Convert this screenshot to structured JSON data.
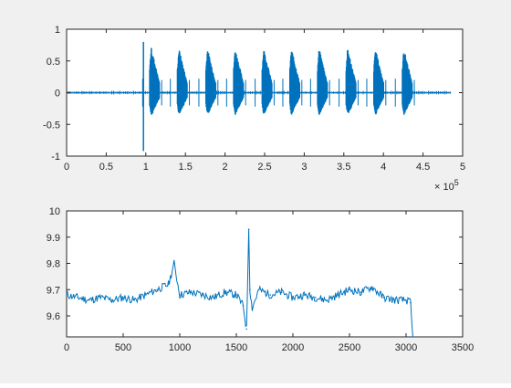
{
  "chart_data": [
    {
      "type": "line",
      "title": "",
      "xlabel": "",
      "ylabel": "",
      "xlim": [
        0,
        500000
      ],
      "ylim": [
        -1,
        1
      ],
      "x_ticks": [
        "0",
        "0.5",
        "1",
        "1.5",
        "2",
        "2.5",
        "3",
        "3.5",
        "4",
        "4.5",
        "5"
      ],
      "y_ticks": [
        "-1",
        "-0.5",
        "0",
        "0.5",
        "1"
      ],
      "x_exponent": {
        "base": "× 10",
        "power": "5"
      },
      "grid": false,
      "line_color": "#0072bd",
      "signal": {
        "x_end": 485000,
        "first_spike_x": 97000,
        "first_spike_range": [
          -0.92,
          0.8
        ],
        "bursts": [
          {
            "start": 105000,
            "end": 117000,
            "peak": 0.72,
            "trough": -0.38
          },
          {
            "start": 140000,
            "end": 152000,
            "peak": 0.7,
            "trough": -0.36
          },
          {
            "start": 176000,
            "end": 188000,
            "peak": 0.7,
            "trough": -0.36
          },
          {
            "start": 211000,
            "end": 223000,
            "peak": 0.7,
            "trough": -0.36
          },
          {
            "start": 247000,
            "end": 259000,
            "peak": 0.7,
            "trough": -0.36
          },
          {
            "start": 282000,
            "end": 294000,
            "peak": 0.7,
            "trough": -0.36
          },
          {
            "start": 317000,
            "end": 329000,
            "peak": 0.7,
            "trough": -0.36
          },
          {
            "start": 353000,
            "end": 365000,
            "peak": 0.7,
            "trough": -0.36
          },
          {
            "start": 388000,
            "end": 400000,
            "peak": 0.7,
            "trough": -0.36
          },
          {
            "start": 424000,
            "end": 436000,
            "peak": 0.7,
            "trough": -0.36
          }
        ]
      }
    },
    {
      "type": "line",
      "title": "",
      "xlabel": "",
      "ylabel": "",
      "xlim": [
        0,
        3500
      ],
      "ylim": [
        9.52,
        10
      ],
      "x_ticks": [
        "0",
        "500",
        "1000",
        "1500",
        "2000",
        "2500",
        "3000",
        "3500"
      ],
      "y_ticks": [
        "9.6",
        "9.7",
        "9.8",
        "9.9",
        "10"
      ],
      "grid": false,
      "line_color": "#0072bd",
      "x": [
        0,
        100,
        200,
        300,
        400,
        500,
        600,
        700,
        800,
        900,
        950,
        1000,
        1100,
        1200,
        1300,
        1400,
        1500,
        1560,
        1590,
        1610,
        1620,
        1640,
        1700,
        1800,
        1900,
        2000,
        2100,
        2200,
        2300,
        2400,
        2500,
        2600,
        2700,
        2800,
        2900,
        3000,
        3040,
        3060
      ],
      "y": [
        9.68,
        9.67,
        9.66,
        9.67,
        9.66,
        9.67,
        9.66,
        9.68,
        9.7,
        9.72,
        9.8,
        9.68,
        9.69,
        9.68,
        9.67,
        9.69,
        9.68,
        9.64,
        9.55,
        9.93,
        9.7,
        9.63,
        9.7,
        9.68,
        9.69,
        9.67,
        9.68,
        9.67,
        9.66,
        9.68,
        9.7,
        9.69,
        9.71,
        9.67,
        9.66,
        9.66,
        9.65,
        9.5
      ]
    }
  ]
}
